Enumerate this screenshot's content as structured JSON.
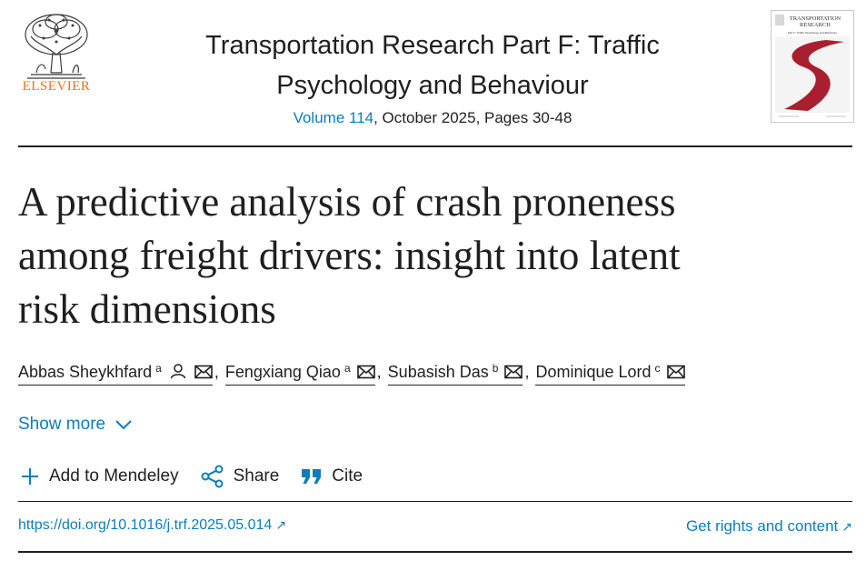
{
  "header": {
    "publisher": "ELSEVIER",
    "journal_title_line1": "Transportation Research Part F: Traffic",
    "journal_title_line2": "Psychology and Behaviour",
    "volume_link": "Volume 114",
    "issue_info": ", October 2025, Pages 30-48",
    "cover_title_line1": "TRANSPORTATION",
    "cover_title_line2": "RESEARCH",
    "cover_subtitle": "Part F: Traffic Psychology and Behaviour"
  },
  "article": {
    "title_line1": "A predictive analysis of crash proneness",
    "title_line2": "among freight drivers: insight into latent",
    "title_line3": "risk dimensions"
  },
  "authors": [
    {
      "name": "Abbas Sheykhfard",
      "affil": "a"
    },
    {
      "name": "Fengxiang Qiao",
      "affil": "a"
    },
    {
      "name": "Subasish Das",
      "affil": "b"
    },
    {
      "name": "Dominique Lord",
      "affil": "c"
    }
  ],
  "separator": ",",
  "show_more": "Show more",
  "actions": {
    "mendeley": "Add to Mendeley",
    "share": "Share",
    "cite": "Cite"
  },
  "links": {
    "doi": "https://doi.org/10.1016/j.trf.2025.05.014",
    "rights": "Get rights and content"
  },
  "colors": {
    "link": "#0c7dbb",
    "publisher_orange": "#e9711c",
    "cover_red": "#a8202f"
  }
}
